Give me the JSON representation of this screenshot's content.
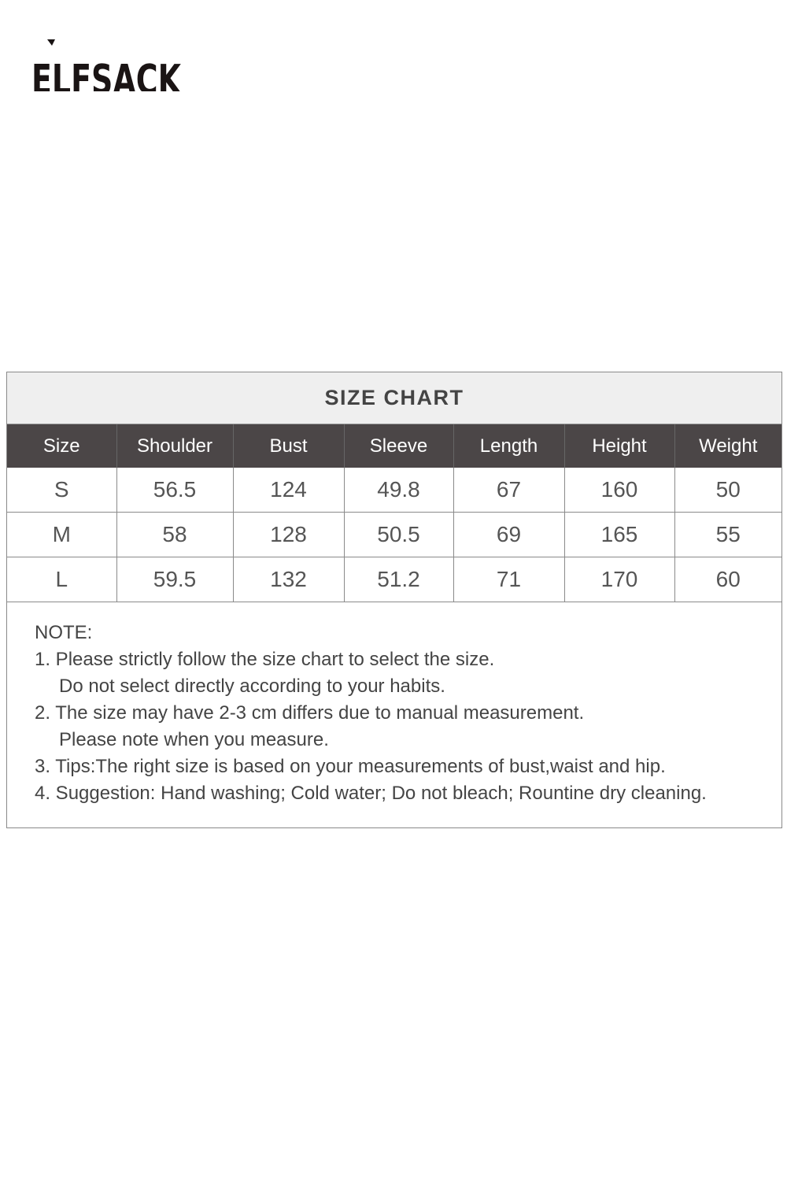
{
  "brand": {
    "logo_text": "ELFSACK"
  },
  "size_chart": {
    "title": "SIZE CHART",
    "columns": [
      "Size",
      "Shoulder",
      "Bust",
      "Sleeve",
      "Length",
      "Height",
      "Weight"
    ],
    "rows": [
      [
        "S",
        "56.5",
        "124",
        "49.8",
        "67",
        "160",
        "50"
      ],
      [
        "M",
        "58",
        "128",
        "50.5",
        "69",
        "165",
        "55"
      ],
      [
        "L",
        "59.5",
        "132",
        "51.2",
        "71",
        "170",
        "60"
      ]
    ]
  },
  "notes": {
    "heading": "NOTE:",
    "lines": [
      "1. Please strictly follow the size chart to select the size.",
      "Do not select directly according to your habits.",
      "2. The size may have 2-3 cm differs due to manual measurement.",
      "Please note when you measure.",
      "3. Tips:The right size is based on your measurements of bust,waist and hip.",
      "4. Suggestion: Hand washing; Cold water; Do not bleach; Rountine dry cleaning."
    ]
  }
}
